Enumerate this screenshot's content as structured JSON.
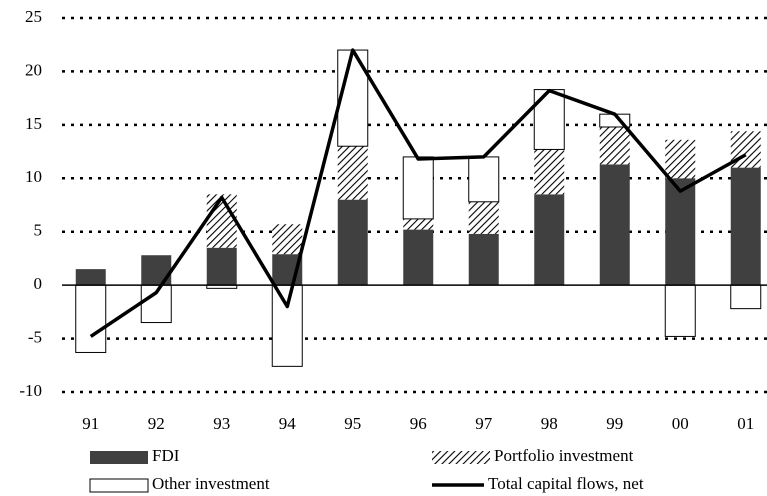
{
  "chart_data": {
    "type": "bar",
    "categories": [
      "91",
      "92",
      "93",
      "94",
      "95",
      "96",
      "97",
      "98",
      "99",
      "00",
      "01"
    ],
    "series": [
      {
        "name": "FDI",
        "color": "#404040",
        "values": [
          1.5,
          2.8,
          3.5,
          2.9,
          8.0,
          5.2,
          4.8,
          8.5,
          11.3,
          10.0,
          11.0
        ]
      },
      {
        "name": "Portfolio investment",
        "color": "hatch",
        "values": [
          0,
          0,
          5.0,
          2.8,
          5.0,
          1.0,
          3.0,
          4.2,
          3.5,
          3.6,
          3.4
        ]
      },
      {
        "name": "Other investment",
        "color": "#ffffff",
        "values": [
          -6.3,
          -3.5,
          -0.3,
          -7.6,
          9.0,
          5.8,
          4.2,
          5.6,
          1.2,
          -4.8,
          -2.2
        ]
      },
      {
        "name": "Total capital flows, net",
        "type": "line",
        "color": "#000000",
        "values": [
          -4.8,
          -0.7,
          8.2,
          -2.0,
          22.0,
          11.8,
          12.0,
          18.2,
          16.0,
          8.8,
          12.2
        ]
      }
    ],
    "ylim": [
      -10,
      25
    ],
    "yticks": [
      -10,
      -5,
      0,
      5,
      10,
      15,
      20,
      25
    ],
    "grid": true
  }
}
